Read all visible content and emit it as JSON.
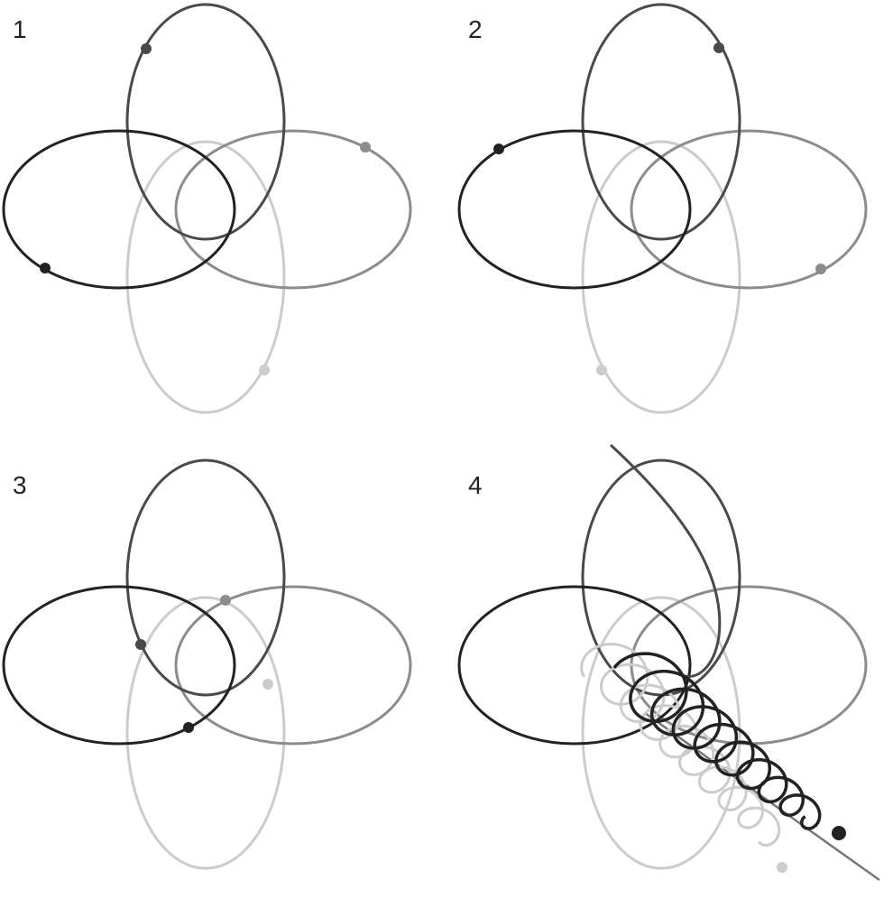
{
  "panels": [
    {
      "label": "1"
    },
    {
      "label": "2"
    },
    {
      "label": "3"
    },
    {
      "label": "4"
    }
  ],
  "colors": {
    "orbit_top": "#4a4a4a",
    "orbit_left": "#222222",
    "orbit_right": "#8c8c8c",
    "orbit_bottom": "#cccccc",
    "trajectory_line": "#777777",
    "background": "#ffffff"
  }
}
